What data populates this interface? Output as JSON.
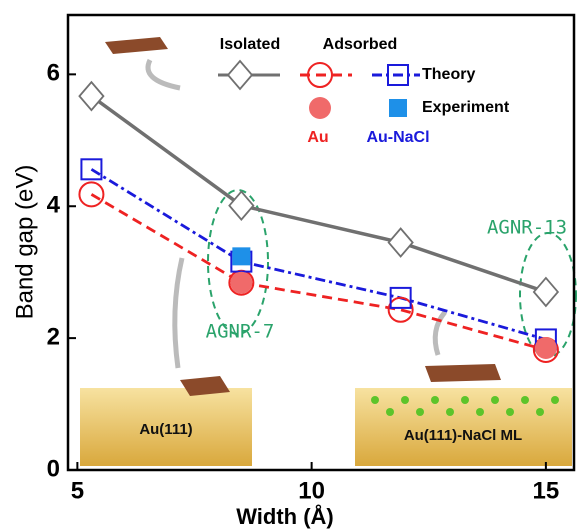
{
  "chart_data": {
    "type": "line",
    "xlabel": "Width (Å)",
    "ylabel": "Band gap (eV)",
    "xlim": [
      4.8,
      15.6
    ],
    "ylim": [
      0,
      6.9
    ],
    "xticks": [
      5,
      10,
      15
    ],
    "yticks": [
      0,
      2,
      4,
      6
    ],
    "series": [
      {
        "x": [
          5.3,
          8.5,
          11.9,
          15.0
        ],
        "values": [
          5.67,
          4.01,
          3.45,
          2.7
        ],
        "color": "#707070",
        "marker": "diamond",
        "dash": "solid"
      },
      {
        "x": [
          5.3,
          8.5,
          11.9,
          15.0
        ],
        "values": [
          4.18,
          2.84,
          2.43,
          1.82
        ],
        "color": "#ee2222",
        "marker": "circle",
        "dash": "dashed"
      },
      {
        "x": [
          5.3,
          8.5,
          11.9,
          15.0
        ],
        "values": [
          4.56,
          3.16,
          2.61,
          1.98
        ],
        "color": "#1a1adb",
        "marker": "square",
        "dash": "dashdot"
      },
      {
        "x": [
          8.5,
          15.0
        ],
        "values": [
          2.84,
          1.85
        ],
        "color": "#f06a6a",
        "marker": "filled-circle",
        "dash": "none"
      },
      {
        "x": [
          8.5
        ],
        "values": [
          3.24
        ],
        "color": "#1e90e8",
        "marker": "filled-square",
        "dash": "none"
      }
    ],
    "legend": {
      "headers": [
        "Isolated",
        "Adsorbed"
      ],
      "rows": [
        "Theory",
        "Experiment"
      ],
      "groups": [
        "Au",
        "Au-NaCl"
      ]
    },
    "annotations": [
      "AGNR-7",
      "AGNR-13",
      "Au(111)",
      "Au(111)-NaCl ML"
    ]
  }
}
